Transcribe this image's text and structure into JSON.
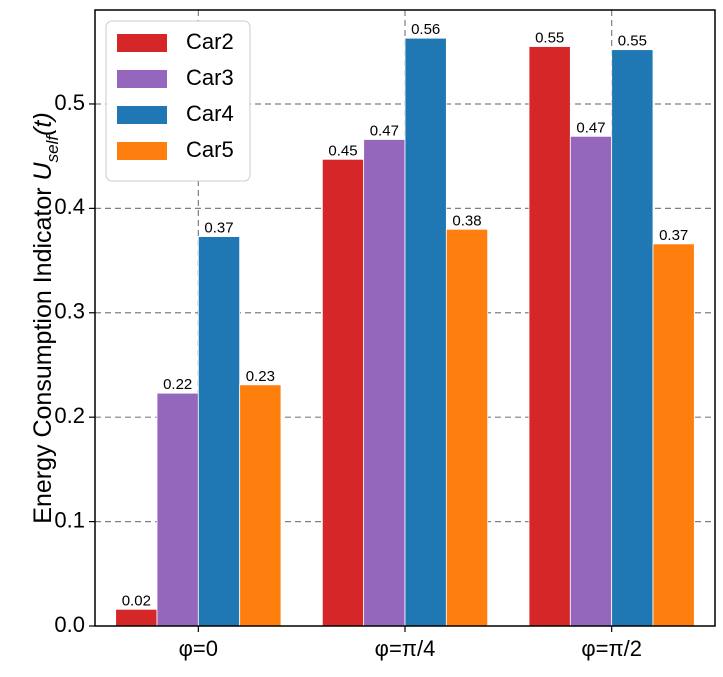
{
  "chart_data": {
    "type": "bar",
    "title": "",
    "xlabel": "",
    "ylabel": {
      "prefix": "Energy Consumption Indicator ",
      "symbol": "U",
      "subscript": "self",
      "suffix": "(t)"
    },
    "ylim": [
      0,
      0.59
    ],
    "yticks": [
      "0.0",
      "0.1",
      "0.2",
      "0.3",
      "0.4",
      "0.5"
    ],
    "ytick_values": [
      0.0,
      0.1,
      0.2,
      0.3,
      0.4,
      0.5
    ],
    "grid": true,
    "legend_position": "upper-left",
    "categories": [
      "φ=0",
      "φ=π/4",
      "φ=π/2"
    ],
    "series": [
      {
        "name": "Car2",
        "color": "#d62728",
        "values": [
          0.016,
          0.447,
          0.555
        ],
        "labels": [
          "0.02",
          "0.45",
          "0.55"
        ]
      },
      {
        "name": "Car3",
        "color": "#9467bd",
        "values": [
          0.223,
          0.466,
          0.469
        ],
        "labels": [
          "0.22",
          "0.47",
          "0.47"
        ]
      },
      {
        "name": "Car4",
        "color": "#1f77b4",
        "values": [
          0.373,
          0.563,
          0.552
        ],
        "labels": [
          "0.37",
          "0.56",
          "0.55"
        ]
      },
      {
        "name": "Car5",
        "color": "#ff7f0e",
        "values": [
          0.231,
          0.38,
          0.366
        ],
        "labels": [
          "0.23",
          "0.38",
          "0.37"
        ]
      }
    ]
  }
}
